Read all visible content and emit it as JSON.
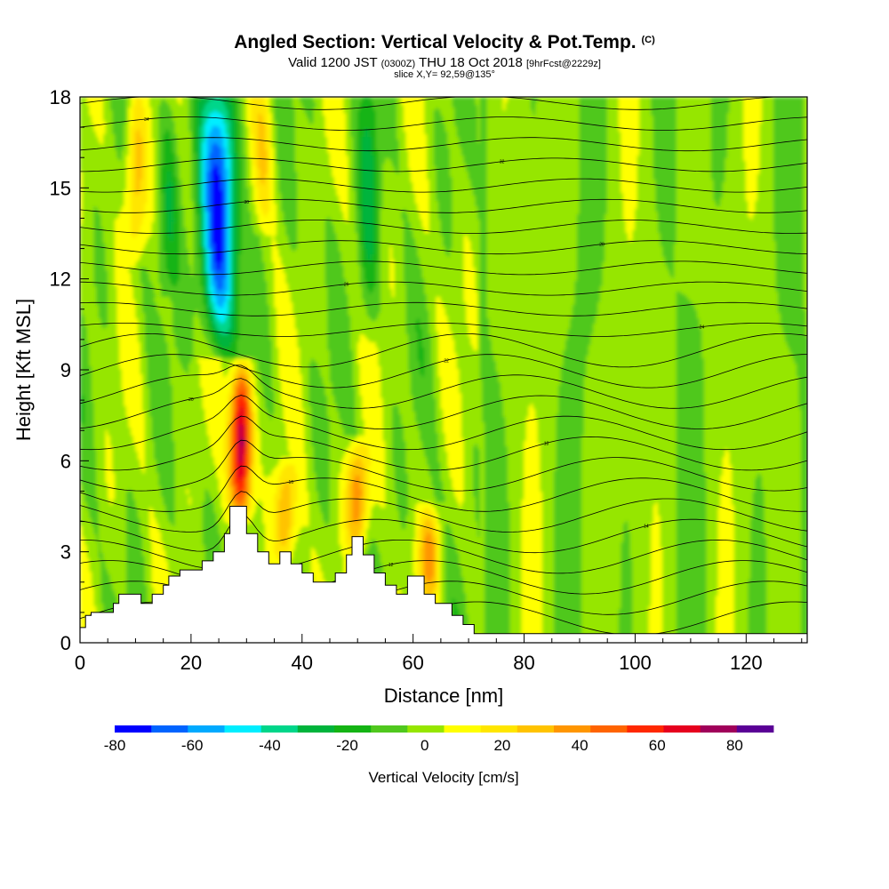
{
  "title": {
    "main": "Angled Section: Vertical Velocity & Pot.Temp.",
    "main_unit": "(C)",
    "valid_prefix": "Valid 1200 JST",
    "valid_utc": "(0300Z)",
    "valid_date": "THU 18 Oct 2018",
    "forecast": "[9hrFcst@2229z]",
    "slice": "slice X,Y= 92,59@135°"
  },
  "chart_data": {
    "type": "heatmap",
    "xlabel": "Distance [nm]",
    "ylabel": "Height [Kft MSL]",
    "xlim": [
      0,
      131
    ],
    "ylim": [
      0,
      18
    ],
    "x_ticks": [
      0,
      20,
      40,
      60,
      80,
      100,
      120
    ],
    "y_ticks": [
      0,
      3,
      6,
      9,
      12,
      15,
      18
    ],
    "colorbar": {
      "label": "Vertical Velocity [cm/s]",
      "min": -80,
      "max": 90,
      "step": 10,
      "tick_values": [
        -80,
        -60,
        -40,
        -20,
        0,
        20,
        40,
        60,
        80
      ],
      "colors": [
        "#0000ff",
        "#0064ff",
        "#00aaff",
        "#00eeff",
        "#00d68a",
        "#00b43c",
        "#14b414",
        "#50c81e",
        "#96e600",
        "#ffff00",
        "#ffe600",
        "#ffc300",
        "#ff9600",
        "#ff6400",
        "#ff2800",
        "#e6001e",
        "#a0005a",
        "#5a0096"
      ]
    },
    "terrain_profile": [
      [
        0,
        0.5
      ],
      [
        1,
        0.5
      ],
      [
        1,
        0.9
      ],
      [
        2,
        0.9
      ],
      [
        2,
        1
      ],
      [
        6,
        1
      ],
      [
        6,
        1.3
      ],
      [
        7,
        1.3
      ],
      [
        7,
        1.6
      ],
      [
        11,
        1.6
      ],
      [
        11,
        1.3
      ],
      [
        13,
        1.3
      ],
      [
        13,
        1.6
      ],
      [
        15,
        1.6
      ],
      [
        15,
        1.9
      ],
      [
        16,
        1.9
      ],
      [
        16,
        2.2
      ],
      [
        18,
        2.2
      ],
      [
        18,
        2.4
      ],
      [
        22,
        2.4
      ],
      [
        22,
        2.7
      ],
      [
        24,
        2.7
      ],
      [
        24,
        3.0
      ],
      [
        26,
        3.0
      ],
      [
        26,
        3.6
      ],
      [
        27,
        3.6
      ],
      [
        27,
        4.5
      ],
      [
        30,
        4.5
      ],
      [
        30,
        3.6
      ],
      [
        32,
        3.6
      ],
      [
        32,
        3.0
      ],
      [
        34,
        3.0
      ],
      [
        34,
        2.6
      ],
      [
        36,
        2.6
      ],
      [
        36,
        3.0
      ],
      [
        38,
        3.0
      ],
      [
        38,
        2.6
      ],
      [
        40,
        2.6
      ],
      [
        40,
        2.3
      ],
      [
        42,
        2.3
      ],
      [
        42,
        2.0
      ],
      [
        46,
        2.0
      ],
      [
        46,
        2.3
      ],
      [
        48,
        2.3
      ],
      [
        48,
        2.9
      ],
      [
        49,
        2.9
      ],
      [
        49,
        3.5
      ],
      [
        51,
        3.5
      ],
      [
        51,
        2.9
      ],
      [
        53,
        2.9
      ],
      [
        53,
        2.3
      ],
      [
        55,
        2.3
      ],
      [
        55,
        1.9
      ],
      [
        57,
        1.9
      ],
      [
        57,
        1.6
      ],
      [
        59,
        1.6
      ],
      [
        59,
        2.2
      ],
      [
        62,
        2.2
      ],
      [
        62,
        1.6
      ],
      [
        64,
        1.6
      ],
      [
        64,
        1.3
      ],
      [
        67,
        1.3
      ],
      [
        67,
        0.9
      ],
      [
        69,
        0.9
      ],
      [
        69,
        0.6
      ],
      [
        71,
        0.6
      ],
      [
        71,
        0.3
      ],
      [
        131,
        0.3
      ]
    ],
    "updrafts": [
      {
        "x": 29,
        "y_range": [
          4.5,
          8.8
        ],
        "peak": 90
      },
      {
        "x": 37,
        "y_range": [
          2.8,
          5.5
        ],
        "peak": 40
      },
      {
        "x": 50,
        "y_range": [
          3.5,
          6.2
        ],
        "peak": 45
      },
      {
        "x": 63,
        "y_range": [
          1.8,
          4.0
        ],
        "peak": 35
      },
      {
        "x": 10,
        "y_range": [
          13.0,
          18.0
        ],
        "peak": 35
      },
      {
        "x": 33,
        "y_range": [
          14.0,
          18.0
        ],
        "peak": 20
      }
    ],
    "downdrafts": [
      {
        "x": 25,
        "y_range": [
          10.0,
          18.0
        ],
        "peak": -80
      },
      {
        "x": 16,
        "y_range": [
          12.0,
          18.0
        ],
        "peak": -25
      },
      {
        "x": 52,
        "y_range": [
          10.5,
          18.0
        ],
        "peak": -25
      }
    ],
    "contour_label_values": [
      "36",
      "34",
      "32",
      "30",
      "28",
      "26",
      "24",
      "22",
      "20",
      "18",
      "16",
      "14",
      "12",
      "10"
    ]
  }
}
